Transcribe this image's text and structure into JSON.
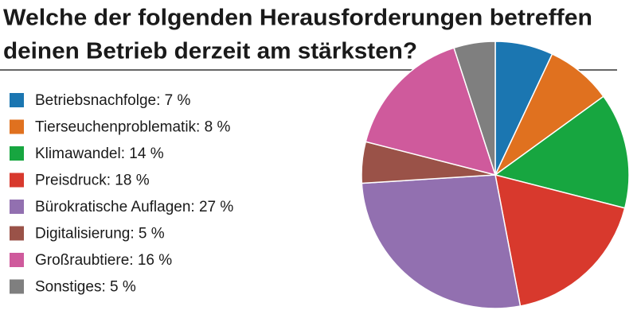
{
  "chart_data": {
    "type": "pie",
    "title": [
      "Welche der folgenden Herausforderungen betreffen",
      "deinen Betrieb derzeit am stärksten?"
    ],
    "categories": [
      "Betriebsnachfolge: 7 %",
      "Tierseuchenproblematik: 8 %",
      "Klimawandel: 14 %",
      "Preisdruck: 18 %",
      "Bürokratische Auflagen: 27 %",
      "Digitalisierung: 5 %",
      "Großraubtiere: 16 %",
      "Sonstiges: 5 %"
    ],
    "values": [
      7,
      8,
      14,
      18,
      27,
      5,
      16,
      5
    ],
    "colors": [
      "#1b76b1",
      "#e0711f",
      "#17a640",
      "#d8392d",
      "#9270b0",
      "#9a5248",
      "#cf5a9c",
      "#7f7f7f"
    ],
    "legend": "left"
  }
}
